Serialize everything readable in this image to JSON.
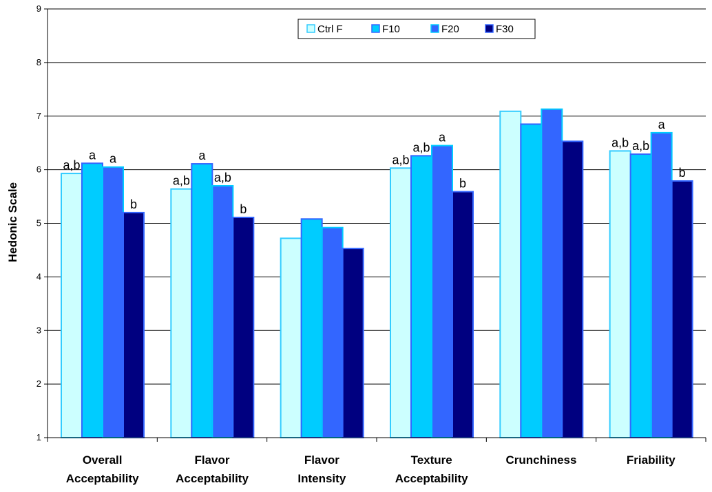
{
  "chart_data": {
    "type": "bar",
    "ylabel": "Hedonic Scale",
    "ylim": [
      1,
      9
    ],
    "yticks": [
      1,
      2,
      3,
      4,
      5,
      6,
      7,
      8,
      9
    ],
    "grid": true,
    "legend_position": "top-center",
    "categories": [
      [
        "Overall",
        "Acceptability"
      ],
      [
        "Flavor",
        "Acceptability"
      ],
      [
        "Flavor",
        "Intensity"
      ],
      [
        "Texture",
        "Acceptability"
      ],
      [
        "Crunchiness"
      ],
      [
        "Friability"
      ]
    ],
    "series": [
      {
        "name": "Ctrl F",
        "color": "#ccffff",
        "edge": "#33ccff",
        "values": [
          5.93,
          5.64,
          4.72,
          6.03,
          7.09,
          6.35
        ]
      },
      {
        "name": "F10",
        "color": "#00ccff",
        "edge": "#3366ff",
        "values": [
          6.12,
          6.11,
          5.08,
          6.26,
          6.85,
          6.29
        ]
      },
      {
        "name": "F20",
        "color": "#3366ff",
        "edge": "#00ccff",
        "values": [
          6.05,
          5.7,
          4.92,
          6.45,
          7.13,
          6.69
        ]
      },
      {
        "name": "F30",
        "color": "#000080",
        "edge": "#3366ff",
        "values": [
          5.2,
          5.11,
          4.53,
          5.59,
          6.53,
          5.79
        ]
      }
    ],
    "annotations": [
      [
        "a,b",
        "a",
        "a",
        "b"
      ],
      [
        "a,b",
        "a",
        "a,b",
        "b"
      ],
      [
        "",
        "",
        "",
        ""
      ],
      [
        "a,b",
        "a,b",
        "a",
        "b"
      ],
      [
        "",
        "",
        "",
        ""
      ],
      [
        "a,b",
        "a,b",
        "a",
        "b"
      ]
    ]
  }
}
